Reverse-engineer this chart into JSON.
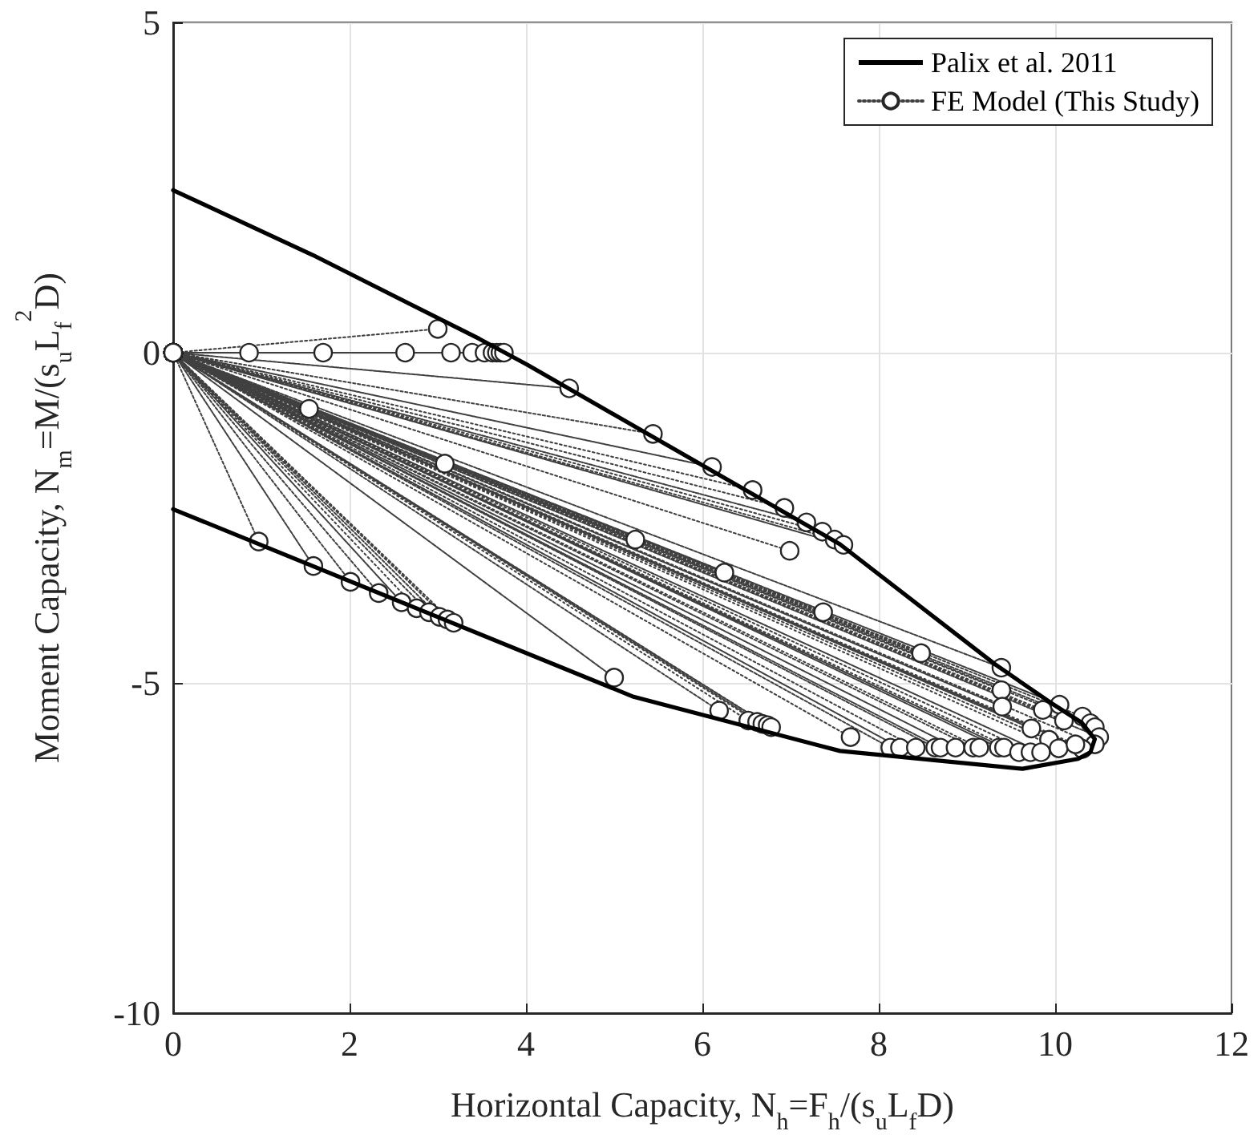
{
  "chart_data": {
    "type": "line",
    "xlabel": "Horizontal Capacity, N$_{h}$=F$_{h}$/(s$_{u}$L$_{f}$D)",
    "ylabel": "Moment Capacity, N$_{m}$=M/(s$_{u}$L$_{f}$$^{2}$D)",
    "xlim": [
      0,
      12
    ],
    "xticks": [
      0,
      2,
      4,
      6,
      8,
      10,
      12
    ],
    "ylim": [
      -10,
      5
    ],
    "yticks": [
      -10,
      -5,
      0,
      5
    ],
    "grid": true,
    "legend": "top right",
    "series": [
      {
        "name": "Palix et al. 2011",
        "color": "#000000",
        "marker": "none",
        "line_style": "solid",
        "x": [
          0,
          1.58,
          3.47,
          4.01,
          7.56,
          9.32,
          9.95,
          10.3,
          10.45,
          10.4,
          10.26,
          9.63,
          7.56,
          5.22,
          0
        ],
        "values": [
          2.46,
          1.48,
          0.21,
          -0.18,
          -2.9,
          -4.72,
          -5.3,
          -5.6,
          -5.85,
          -6.05,
          -6.15,
          -6.3,
          -6.03,
          -5.21,
          -2.37
        ]
      },
      {
        "name": "FE Model (This Study)",
        "color": "#404040",
        "marker": "circle",
        "line_style": "dotted",
        "x": [
          0,
          0.86,
          0,
          1.7,
          0,
          2.63,
          0,
          3.15,
          0,
          3.39,
          0,
          3.53,
          0,
          3.62,
          0,
          3.67,
          0,
          3.71,
          0,
          3.75,
          0,
          3.0,
          0,
          4.49,
          0,
          5.44,
          0,
          6.11,
          0,
          6.57,
          0,
          6.93,
          0,
          7.18,
          0,
          7.36,
          0,
          7.5,
          0,
          7.6,
          0,
          1.54,
          0,
          3.08,
          0,
          5.24,
          0,
          6.25,
          0,
          6.99,
          0,
          7.37,
          0,
          8.48,
          0,
          9.39,
          0,
          9.39,
          0,
          9.4,
          0,
          9.86,
          0,
          10.05,
          0,
          9.73,
          0,
          9.93,
          0,
          10.1,
          0,
          10.31,
          0,
          10.4,
          0,
          10.45,
          0,
          10.5,
          0,
          10.45,
          0,
          10.31,
          0,
          0.97,
          0,
          1.59,
          0,
          2.01,
          0,
          2.33,
          0,
          2.59,
          0,
          2.76,
          0,
          2.9,
          0,
          3.02,
          0,
          3.11,
          0,
          3.18,
          0,
          5.0,
          0,
          6.19,
          0,
          6.52,
          0,
          6.62,
          0,
          6.68,
          0,
          6.74,
          0,
          6.78,
          0,
          7.68,
          0,
          8.13,
          0,
          8.24,
          0,
          8.42,
          0,
          8.64,
          0,
          8.7,
          0,
          8.87,
          0,
          9.07,
          0,
          9.14,
          0,
          9.36,
          0,
          9.42,
          0,
          9.59,
          0,
          9.72,
          0,
          9.84,
          0,
          10.04,
          0,
          10.23
        ],
        "values": [
          0,
          0,
          0,
          0,
          0,
          0,
          0,
          0,
          0,
          0,
          0,
          0,
          0,
          0,
          0,
          0,
          0,
          0,
          0,
          0,
          0,
          0.36,
          0,
          -0.54,
          0,
          -1.23,
          0,
          -1.73,
          0,
          -2.08,
          0,
          -2.35,
          0,
          -2.57,
          0,
          -2.71,
          0,
          -2.83,
          0,
          -2.91,
          0,
          -0.85,
          0,
          -1.68,
          0,
          -2.83,
          0,
          -3.33,
          0,
          -3.0,
          0,
          -3.93,
          0,
          -4.55,
          0,
          -4.77,
          0,
          -5.11,
          0,
          -5.36,
          0,
          -5.41,
          0,
          -5.33,
          0,
          -5.69,
          0,
          -5.86,
          0,
          -5.57,
          0,
          -5.51,
          0,
          -5.61,
          0,
          -5.67,
          0,
          -5.82,
          0,
          -5.93,
          0,
          -6.0,
          0,
          -2.86,
          0,
          -3.23,
          0,
          -3.47,
          0,
          -3.64,
          0,
          -3.78,
          0,
          -3.87,
          0,
          -3.93,
          0,
          -4.0,
          0,
          -4.04,
          0,
          -4.09,
          0,
          -4.92,
          0,
          -5.42,
          0,
          -5.57,
          0,
          -5.59,
          0,
          -5.62,
          0,
          -5.64,
          0,
          -5.67,
          0,
          -5.82,
          0,
          -5.98,
          0,
          -5.98,
          0,
          -5.98,
          0,
          -5.98,
          0,
          -5.98,
          0,
          -5.98,
          0,
          -5.98,
          0,
          -5.98,
          0,
          -5.98,
          0,
          -5.98,
          0,
          -6.05,
          0,
          -6.05,
          0,
          -6.05,
          0,
          -5.99,
          0,
          -5.93
        ]
      }
    ]
  }
}
